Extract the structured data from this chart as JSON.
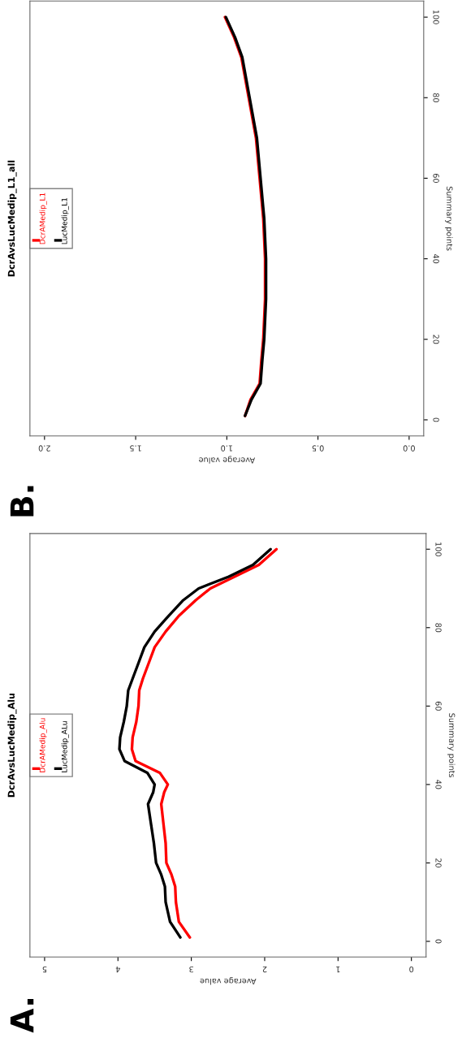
{
  "chart_data": [
    {
      "type": "line",
      "title": "DcrAvsLucMedip_Alu",
      "xlabel": "Average value",
      "ylabel": "Summary points",
      "annotations": [
        "A."
      ],
      "xlim": [
        5.2,
        -0.2
      ],
      "xticks": [
        0,
        1,
        2,
        3,
        4,
        5
      ],
      "ylim": [
        -4,
        104
      ],
      "yticks": [
        0,
        20,
        40,
        60,
        80,
        100
      ],
      "grid": false,
      "legend": "left",
      "line_style": "solid",
      "series": [
        {
          "name": "DcrAMedip_Alu",
          "color": "#ff0000",
          "x": [
            3.02,
            3.17,
            3.21,
            3.22,
            3.27,
            3.34,
            3.35,
            3.38,
            3.41,
            3.37,
            3.32,
            3.43,
            3.76,
            3.81,
            3.8,
            3.75,
            3.72,
            3.71,
            3.66,
            3.58,
            3.5,
            3.35,
            3.17,
            2.94,
            2.74,
            2.41,
            2.08,
            1.84
          ],
          "values": [
            1,
            5,
            10,
            14,
            17,
            20,
            25,
            30,
            35,
            38,
            40,
            43,
            46,
            49,
            52,
            56,
            60,
            64,
            67,
            71,
            75,
            79,
            83,
            87,
            90,
            93,
            96,
            100
          ]
        },
        {
          "name": "LucMedip_ALu",
          "color": "#000000",
          "x": [
            3.15,
            3.29,
            3.35,
            3.36,
            3.41,
            3.48,
            3.51,
            3.55,
            3.59,
            3.52,
            3.5,
            3.6,
            3.91,
            3.98,
            3.97,
            3.92,
            3.88,
            3.86,
            3.8,
            3.72,
            3.64,
            3.5,
            3.31,
            3.11,
            2.9,
            2.49,
            2.16,
            1.92
          ],
          "values": [
            1,
            5,
            10,
            14,
            17,
            20,
            25,
            30,
            35,
            38,
            40,
            43,
            46,
            49,
            52,
            56,
            60,
            64,
            67,
            71,
            75,
            79,
            83,
            87,
            90,
            93,
            96,
            100
          ]
        }
      ]
    },
    {
      "type": "line",
      "title": "DcrAvsLucMedip_L1_all",
      "xlabel": "Average value",
      "ylabel": "Summary points",
      "annotations": [
        "B."
      ],
      "xlim": [
        2.08,
        -0.08
      ],
      "xticks": [
        {
          "value": 0,
          "label": "0.0"
        },
        0.5,
        {
          "value": 1,
          "label": "1.0"
        },
        1.5,
        {
          "value": 2,
          "label": "2.0"
        }
      ],
      "ylim": [
        -4,
        104
      ],
      "yticks": [
        0,
        20,
        40,
        60,
        80,
        100
      ],
      "grid": false,
      "legend": "left",
      "line_style": "solid",
      "series": [
        {
          "name": "DcrAMedip_L1",
          "color": "#ff0000",
          "x": [
            0.9,
            0.87,
            0.82,
            0.81,
            0.8,
            0.79,
            0.79,
            0.8,
            0.82,
            0.84,
            0.88,
            0.92,
            0.96,
            1.01
          ],
          "values": [
            1,
            5,
            9,
            15,
            20,
            30,
            40,
            50,
            60,
            70,
            80,
            90,
            95,
            100
          ]
        },
        {
          "name": "LucMedip_L1",
          "color": "#000000",
          "x": [
            0.9,
            0.865,
            0.815,
            0.805,
            0.795,
            0.785,
            0.785,
            0.795,
            0.815,
            0.835,
            0.875,
            0.915,
            0.955,
            1.005
          ],
          "values": [
            1,
            5,
            9,
            15,
            20,
            30,
            40,
            50,
            60,
            70,
            80,
            90,
            95,
            100
          ]
        }
      ]
    }
  ]
}
